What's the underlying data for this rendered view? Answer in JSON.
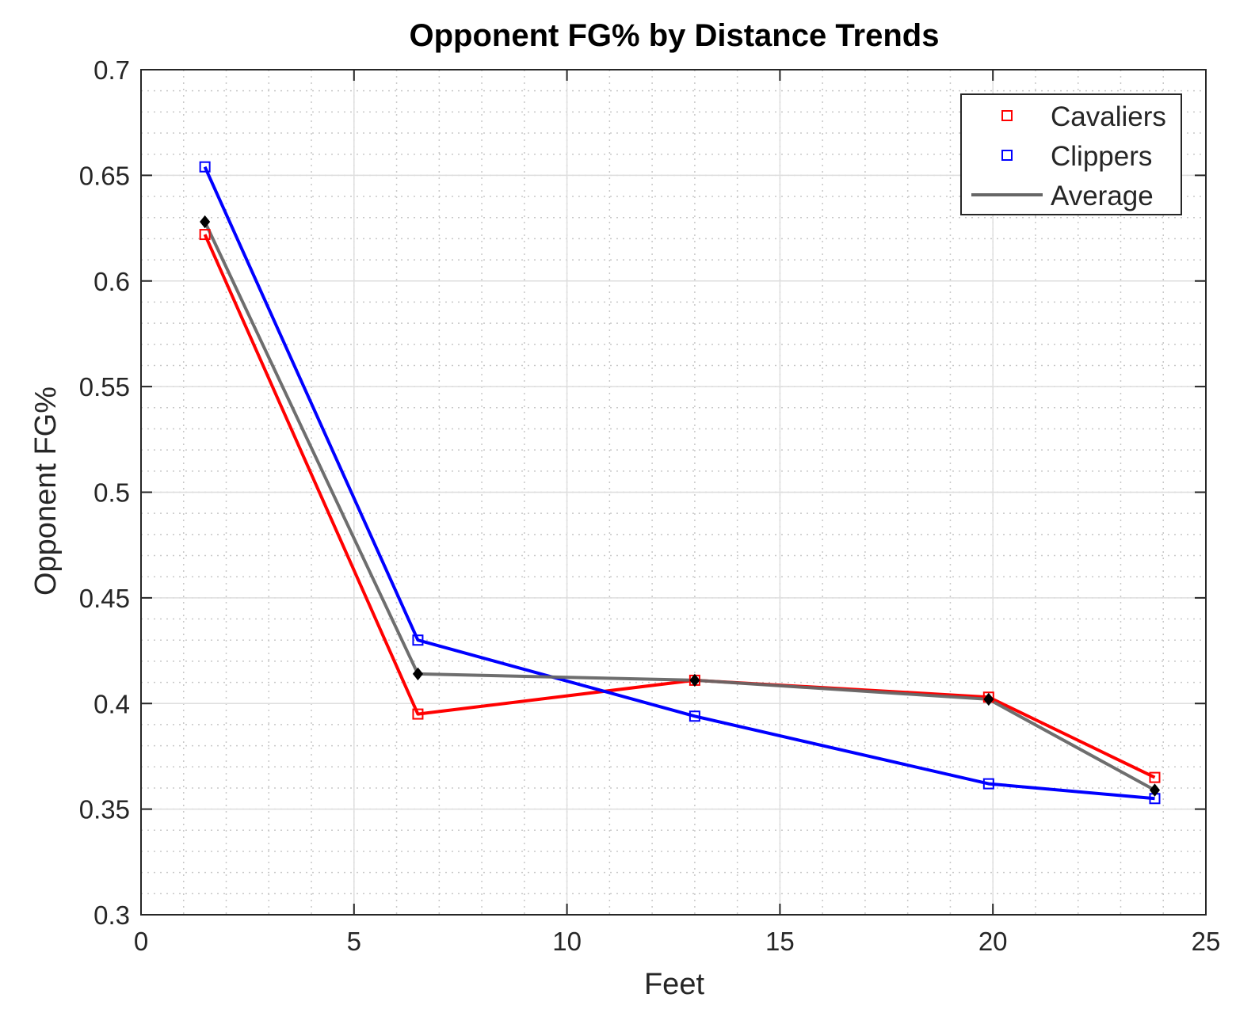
{
  "chart_data": {
    "type": "line",
    "title": "Opponent FG% by Distance Trends",
    "xlabel": "Feet",
    "ylabel": "Opponent FG%",
    "xlim": [
      0,
      25
    ],
    "ylim": [
      0.3,
      0.7
    ],
    "xticks": [
      0,
      5,
      10,
      15,
      20,
      25
    ],
    "xtick_labels": [
      "0",
      "5",
      "10",
      "15",
      "20",
      "25"
    ],
    "yticks": [
      0.3,
      0.35,
      0.4,
      0.45,
      0.5,
      0.55,
      0.6,
      0.65,
      0.7
    ],
    "ytick_labels": [
      "0.3",
      "0.35",
      "0.4",
      "0.45",
      "0.5",
      "0.55",
      "0.6",
      "0.65",
      "0.7"
    ],
    "grid": true,
    "minor_grid": true,
    "legend_position": "top-right",
    "x": [
      1.5,
      6.5,
      13,
      19.9,
      23.8
    ],
    "series": [
      {
        "name": "Cavaliers",
        "values": [
          0.622,
          0.395,
          0.411,
          0.403,
          0.365
        ],
        "color": "#ff0000",
        "marker": "square"
      },
      {
        "name": "Clippers",
        "values": [
          0.654,
          0.43,
          0.394,
          0.362,
          0.355
        ],
        "color": "#0000ff",
        "marker": "square"
      },
      {
        "name": "Average",
        "values": [
          0.628,
          0.414,
          0.411,
          0.402,
          0.359
        ],
        "color": "#666666",
        "marker": "diamond",
        "marker_color": "#000000"
      }
    ]
  }
}
